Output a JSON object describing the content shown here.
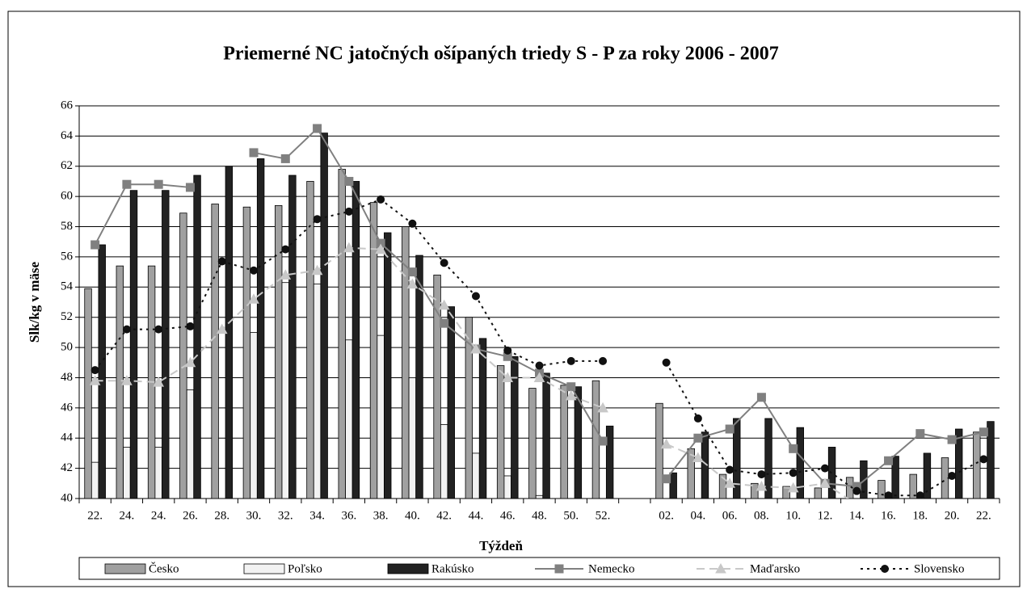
{
  "chart_data": {
    "type": "bar",
    "title": "Priemerné NC jatočných ošípaných triedy S - P za roky 2006 - 2007",
    "x_label": "Týždeň",
    "y_label": "Slk/kg v mäse",
    "categories": [
      "22.",
      "24.",
      "24.",
      "26.",
      "28.",
      "30.",
      "32.",
      "34.",
      "36.",
      "38.",
      "40.",
      "42.",
      "44.",
      "46.",
      "48.",
      "50.",
      "52.",
      null,
      "02.",
      "04.",
      "06.",
      "08.",
      "10.",
      "12.",
      "14.",
      "16.",
      "18.",
      "20.",
      "22."
    ],
    "ylim": [
      40,
      66
    ],
    "yticks": [
      40,
      42,
      44,
      46,
      48,
      50,
      52,
      54,
      56,
      58,
      60,
      62,
      64,
      66
    ],
    "grid": true,
    "legend": "bottom",
    "series": [
      {
        "name": "Česko",
        "type": "bar",
        "color": "#a0a0a0",
        "values": [
          53.9,
          55.4,
          55.4,
          58.9,
          59.5,
          59.3,
          59.4,
          61.0,
          61.8,
          59.6,
          58.0,
          54.8,
          52.0,
          48.8,
          47.3,
          47.5,
          47.8,
          null,
          46.3,
          43.3,
          41.6,
          41.0,
          40.8,
          40.7,
          41.4,
          41.2,
          41.6,
          42.7,
          44.4
        ]
      },
      {
        "name": "Poľsko",
        "type": "bar",
        "color": "#f2f2f2",
        "values": [
          42.4,
          43.4,
          43.4,
          47.2,
          null,
          51.0,
          54.3,
          54.2,
          50.5,
          50.8,
          48.0,
          44.9,
          43.0,
          41.5,
          40.2,
          null,
          null,
          null,
          null,
          null,
          null,
          null,
          null,
          null,
          null,
          null,
          null,
          null,
          null
        ]
      },
      {
        "name": "Rakúsko",
        "type": "bar",
        "color": "#222222",
        "values": [
          56.8,
          60.4,
          60.4,
          61.4,
          62.0,
          62.5,
          61.4,
          64.2,
          61.0,
          57.6,
          56.1,
          52.7,
          50.6,
          49.4,
          48.3,
          47.4,
          44.8,
          null,
          41.7,
          44.4,
          45.3,
          45.3,
          44.7,
          43.4,
          42.5,
          42.8,
          43.0,
          44.6,
          45.1
        ]
      },
      {
        "name": "Nemecko",
        "type": "line",
        "color": "#808080",
        "marker": "square",
        "dash": "solid",
        "values": [
          56.8,
          60.8,
          60.8,
          60.6,
          null,
          62.9,
          62.5,
          64.5,
          61.0,
          56.9,
          55.0,
          51.6,
          49.9,
          49.4,
          48.3,
          47.4,
          43.8,
          null,
          41.3,
          44.0,
          44.6,
          46.7,
          43.3,
          41.0,
          40.8,
          42.5,
          44.3,
          43.9,
          44.4
        ]
      },
      {
        "name": "Maďarsko",
        "type": "line",
        "color": "#c8c8c8",
        "marker": "triangle",
        "dash": "dashed",
        "values": [
          47.8,
          47.8,
          47.7,
          49.0,
          51.2,
          53.2,
          54.8,
          55.1,
          56.6,
          56.5,
          54.2,
          52.8,
          49.9,
          48.0,
          48.0,
          46.8,
          46.0,
          null,
          43.6,
          42.7,
          41.0,
          40.8,
          40.7,
          41.0,
          39.6,
          null,
          null,
          null,
          null
        ]
      },
      {
        "name": "Slovensko",
        "type": "line",
        "color": "#111111",
        "marker": "circle",
        "dash": "dotted",
        "values": [
          48.5,
          51.2,
          51.2,
          51.4,
          55.7,
          55.1,
          56.5,
          58.5,
          59.0,
          59.8,
          58.2,
          55.6,
          53.4,
          49.8,
          48.8,
          49.1,
          49.1,
          null,
          49.0,
          45.3,
          41.9,
          41.6,
          41.7,
          42.0,
          40.5,
          40.2,
          40.2,
          41.5,
          42.6
        ]
      }
    ]
  }
}
